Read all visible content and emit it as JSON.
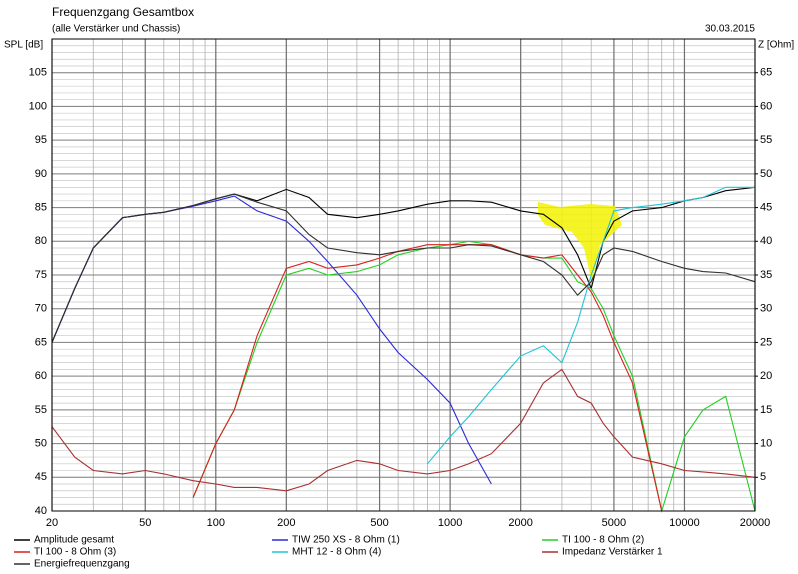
{
  "chart_data": {
    "type": "line",
    "title": "Frequenzgang Gesamtbox",
    "subtitle": "(alle Verstärker und Chassis)",
    "date": "30.03.2015",
    "y_label": "SPL [dB]",
    "y2_label": "Z [Ohm]",
    "x_log": true,
    "grid": true,
    "x": [
      20,
      25,
      30,
      40,
      50,
      60,
      80,
      100,
      120,
      150,
      200,
      250,
      300,
      400,
      500,
      600,
      800,
      1000,
      1200,
      1500,
      2000,
      2500,
      3000,
      3500,
      4000,
      4500,
      5000,
      6000,
      8000,
      10000,
      12000,
      15000,
      20000
    ],
    "xlim": [
      20,
      20000
    ],
    "xticks": [
      20,
      50,
      100,
      200,
      500,
      1000,
      2000,
      5000,
      10000,
      20000
    ],
    "ylim": [
      40,
      110
    ],
    "yticks": [
      40,
      45,
      50,
      55,
      60,
      65,
      70,
      75,
      80,
      85,
      90,
      95,
      100,
      105
    ],
    "y2lim": [
      0,
      70
    ],
    "y2ticks": [
      5,
      10,
      15,
      20,
      25,
      30,
      35,
      40,
      45,
      50,
      55,
      60,
      65
    ],
    "series": [
      {
        "name": "Amplitude gesamt",
        "color": "#000000",
        "values": [
          65,
          73,
          79,
          83.5,
          84,
          84.3,
          85.3,
          86.3,
          87,
          86,
          87.7,
          86.5,
          84,
          83.5,
          84,
          84.5,
          85.5,
          86,
          86,
          85.8,
          84.5,
          84,
          82,
          78,
          73,
          80,
          83,
          84.5,
          85,
          86,
          86.5,
          87.5,
          88
        ]
      },
      {
        "name": "TIW 250 XS - 8 Ohm (1)",
        "color": "#2a2ad8",
        "values": [
          65,
          73,
          79,
          83.5,
          84,
          84.3,
          85.2,
          86,
          86.7,
          84.5,
          83,
          80,
          77,
          72,
          67,
          63.5,
          59.5,
          56,
          50,
          44,
          null,
          null,
          null,
          null,
          null,
          null,
          null,
          null,
          null,
          null,
          null,
          null,
          null
        ]
      },
      {
        "name": "TI 100 - 8 Ohm (2)",
        "color": "#22d022",
        "values": [
          null,
          null,
          null,
          null,
          null,
          null,
          42,
          50,
          55,
          65,
          75,
          76,
          75,
          75.5,
          76.5,
          78,
          79,
          79.5,
          80,
          79.5,
          78,
          77.5,
          77.5,
          74,
          73,
          70,
          66,
          60,
          40,
          51,
          55,
          57,
          40
        ]
      },
      {
        "name": "TI 100 - 8 Ohm (3)",
        "color": "#d82020",
        "values": [
          null,
          null,
          null,
          null,
          null,
          null,
          42,
          50,
          55,
          66,
          76,
          77,
          76,
          76.5,
          77.5,
          78.5,
          79.5,
          79.5,
          79.5,
          79.5,
          78,
          77.5,
          78,
          75,
          72.5,
          69,
          65,
          59,
          40,
          null,
          null,
          null,
          null
        ]
      },
      {
        "name": "MHT 12 - 8 Ohm (4)",
        "color": "#22c4d4",
        "values": [
          null,
          null,
          null,
          null,
          null,
          null,
          null,
          null,
          null,
          null,
          null,
          null,
          null,
          null,
          null,
          null,
          47,
          51,
          54,
          58,
          63,
          64.5,
          62,
          68,
          75,
          80,
          84.5,
          85,
          85.5,
          86,
          86.5,
          88,
          88
        ]
      },
      {
        "name": "Impedanz Verstärker 1",
        "color": "#a83030",
        "axis": "y2",
        "values": [
          12.5,
          8,
          6,
          5.5,
          6,
          5.5,
          4.5,
          4,
          3.5,
          3.5,
          3,
          4,
          6,
          7.5,
          7,
          6,
          5.5,
          6,
          7,
          8.5,
          13,
          19,
          21,
          17,
          16,
          13,
          11,
          8,
          7,
          6,
          5.8,
          5.5,
          5
        ]
      },
      {
        "name": "Energiefrequenzgang",
        "color": "#303030",
        "values": [
          65,
          73,
          79,
          83.5,
          84,
          84.3,
          85.3,
          86.3,
          87,
          85.8,
          84.5,
          81,
          79,
          78.3,
          78,
          78.5,
          79,
          79,
          79.5,
          79.3,
          78,
          77,
          75,
          72,
          74,
          78,
          79,
          78.5,
          77,
          76,
          75.5,
          75.3,
          74
        ]
      }
    ]
  }
}
